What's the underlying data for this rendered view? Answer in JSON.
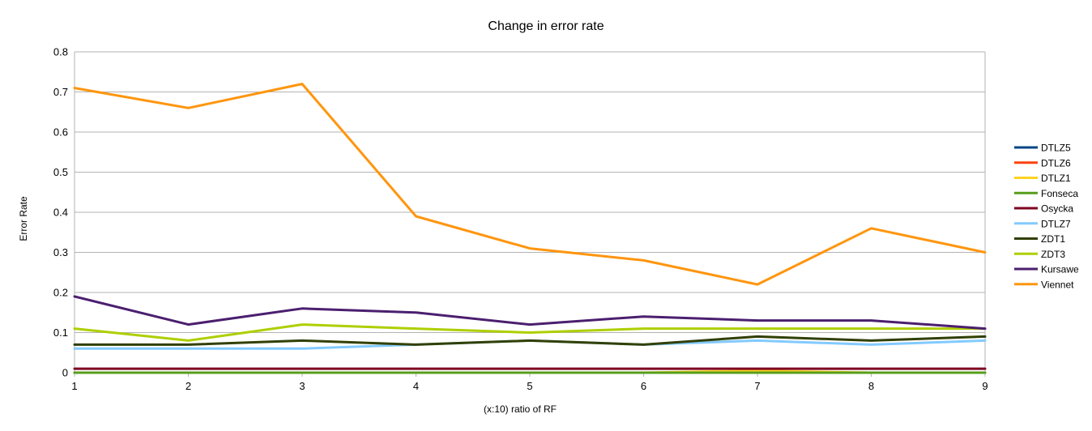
{
  "chart_data": {
    "type": "line",
    "title": "Change in error rate",
    "xlabel": "(x:10) ratio of RF",
    "ylabel": "Error Rate",
    "x": [
      1,
      2,
      3,
      4,
      5,
      6,
      7,
      8,
      9
    ],
    "xlim": [
      1,
      9
    ],
    "ylim": [
      0,
      0.8
    ],
    "yticks": [
      "0",
      "0.1",
      "0.2",
      "0.3",
      "0.4",
      "0.5",
      "0.6",
      "0.7",
      "0.8"
    ],
    "grid": true,
    "legend_position": "right",
    "series": [
      {
        "name": "DTLZ5",
        "color": "#004586",
        "values": [
          0,
          0,
          0,
          0,
          0,
          0,
          0,
          0,
          0
        ]
      },
      {
        "name": "DTLZ6",
        "color": "#ff420e",
        "values": [
          0,
          0,
          0,
          0,
          0,
          0,
          0,
          0,
          0
        ]
      },
      {
        "name": "DTLZ1",
        "color": "#ffd320",
        "values": [
          0,
          0,
          0,
          0,
          0,
          0,
          0.005,
          0,
          0
        ]
      },
      {
        "name": "Fonseca",
        "color": "#579d1c",
        "values": [
          0,
          0,
          0,
          0,
          0,
          0,
          0,
          0,
          0
        ]
      },
      {
        "name": "Osycka",
        "color": "#7e0021",
        "values": [
          0.01,
          0.01,
          0.01,
          0.01,
          0.01,
          0.01,
          0.01,
          0.01,
          0.01
        ]
      },
      {
        "name": "DTLZ7",
        "color": "#83caff",
        "values": [
          0.06,
          0.06,
          0.06,
          0.07,
          0.08,
          0.07,
          0.08,
          0.07,
          0.08
        ]
      },
      {
        "name": "ZDT1",
        "color": "#314004",
        "values": [
          0.07,
          0.07,
          0.08,
          0.07,
          0.08,
          0.07,
          0.09,
          0.08,
          0.09
        ]
      },
      {
        "name": "ZDT3",
        "color": "#aecf00",
        "values": [
          0.11,
          0.08,
          0.12,
          0.11,
          0.1,
          0.11,
          0.11,
          0.11,
          0.11
        ]
      },
      {
        "name": "Kursawe",
        "color": "#4b1f6f",
        "values": [
          0.19,
          0.12,
          0.16,
          0.15,
          0.12,
          0.14,
          0.13,
          0.13,
          0.11
        ]
      },
      {
        "name": "Viennet",
        "color": "#ff950e",
        "values": [
          0.71,
          0.66,
          0.72,
          0.39,
          0.31,
          0.28,
          0.22,
          0.36,
          0.3
        ]
      }
    ]
  }
}
